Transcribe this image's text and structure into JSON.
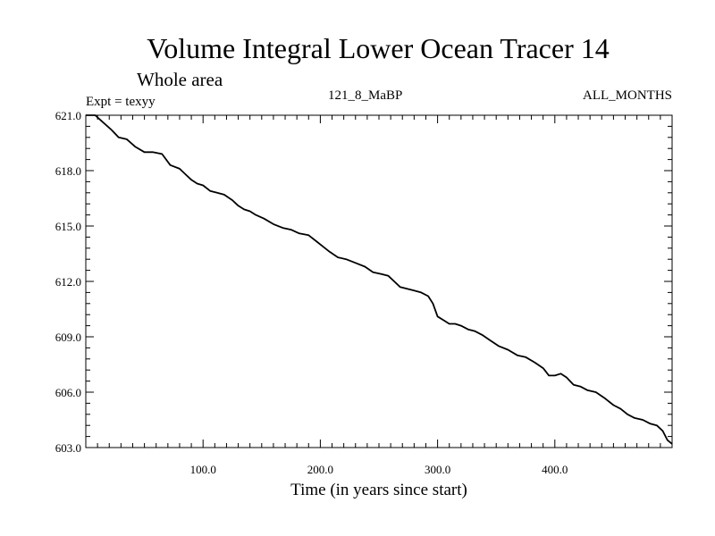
{
  "chart_data": {
    "type": "line",
    "title": "Volume Integral Lower Ocean Tracer 14",
    "subtitle": "Whole area",
    "expt_label": "Expt = texyy",
    "center_label": "121_8_MaBP",
    "right_label": "ALL_MONTHS",
    "xlabel": "Time (in years since start)",
    "ylabel": "",
    "xlim": [
      0,
      500
    ],
    "ylim": [
      603.0,
      621.0
    ],
    "xticks": [
      100,
      200,
      300,
      400
    ],
    "xtick_labels": [
      "100.0",
      "200.0",
      "300.0",
      "400.0"
    ],
    "yticks": [
      603.0,
      606.0,
      609.0,
      612.0,
      615.0,
      618.0,
      621.0
    ],
    "ytick_labels": [
      "603.0",
      "606.0",
      "609.0",
      "612.0",
      "615.0",
      "618.0",
      "621.0"
    ],
    "grid": false,
    "series": [
      {
        "x": [
          0,
          8,
          15,
          22,
          28,
          35,
          42,
          50,
          57,
          65,
          72,
          80,
          85,
          90,
          95,
          100,
          106,
          112,
          118,
          125,
          130,
          135,
          140,
          145,
          152,
          160,
          168,
          175,
          182,
          190,
          196,
          202,
          208,
          215,
          222,
          230,
          238,
          245,
          252,
          258,
          263,
          268,
          274,
          280,
          286,
          292,
          296,
          300,
          305,
          310,
          315,
          320,
          326,
          332,
          338,
          345,
          352,
          360,
          368,
          375,
          383,
          390,
          395,
          400,
          405,
          410,
          416,
          422,
          428,
          435,
          442,
          450,
          456,
          462,
          468,
          475,
          481,
          487,
          492,
          496,
          500
        ],
        "y": [
          621.0,
          621.0,
          620.6,
          620.2,
          619.8,
          619.7,
          619.3,
          619.0,
          619.0,
          618.9,
          618.3,
          618.1,
          617.8,
          617.5,
          617.3,
          617.2,
          616.9,
          616.8,
          616.7,
          616.4,
          616.1,
          615.9,
          615.8,
          615.6,
          615.4,
          615.1,
          614.9,
          614.8,
          614.6,
          614.5,
          614.2,
          613.9,
          613.6,
          613.3,
          613.2,
          613.0,
          612.8,
          612.5,
          612.4,
          612.3,
          612.0,
          611.7,
          611.6,
          611.5,
          611.4,
          611.2,
          610.8,
          610.1,
          609.9,
          609.7,
          609.7,
          609.6,
          609.4,
          609.3,
          609.1,
          608.8,
          608.5,
          608.3,
          608.0,
          607.9,
          607.6,
          607.3,
          606.9,
          606.9,
          607.0,
          606.8,
          606.4,
          606.3,
          606.1,
          606.0,
          605.7,
          605.3,
          605.1,
          604.8,
          604.6,
          604.5,
          604.3,
          604.2,
          603.9,
          603.4,
          603.2
        ]
      }
    ]
  }
}
